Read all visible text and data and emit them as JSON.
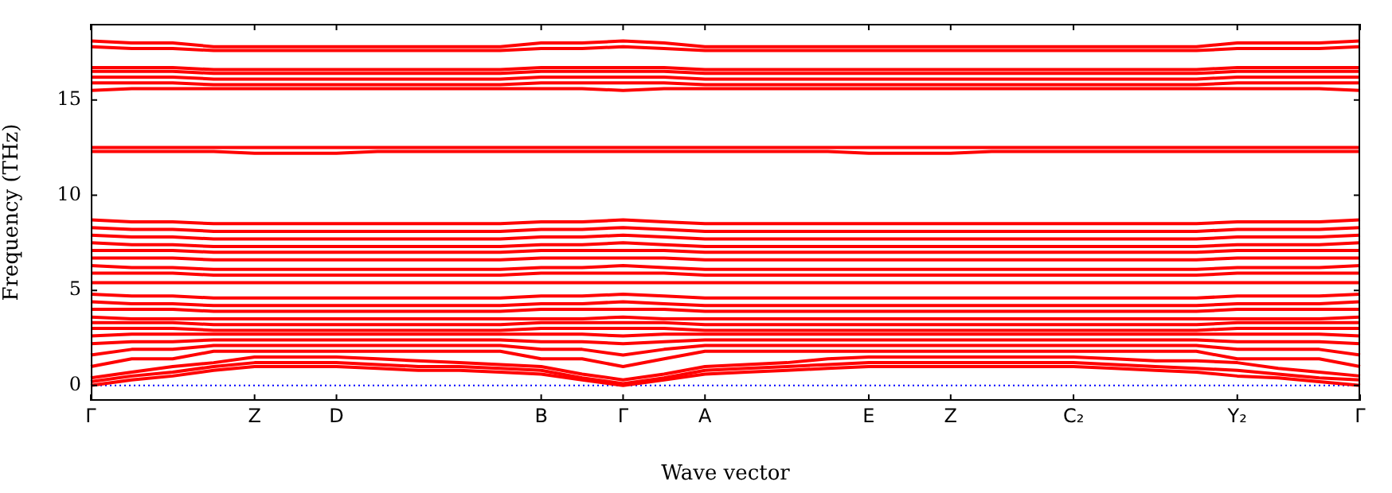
{
  "chart_data": {
    "type": "line",
    "xlabel": "Wave vector",
    "ylabel": "Frequency (THz)",
    "marker": "none",
    "legend": false,
    "grid": false,
    "categories": [
      "Γ",
      null,
      null,
      null,
      "Z",
      null,
      "D",
      null,
      null,
      null,
      null,
      "B",
      null,
      "Γ",
      null,
      "A",
      null,
      null,
      null,
      "E",
      null,
      "Z",
      null,
      null,
      "C₂",
      null,
      null,
      null,
      "Y₂",
      null,
      null,
      "Γ"
    ],
    "ylim": [
      -0.8,
      19
    ],
    "yticks": [
      0,
      5,
      10,
      15
    ],
    "ref_lines": [
      {
        "axis": "y",
        "value": 0,
        "color": "#0000ff",
        "line_style": "dotted"
      }
    ],
    "series": [
      {
        "color": "#ff0000",
        "values": [
          0,
          0.3,
          0.5,
          0.8,
          1.0,
          1.0,
          1.0,
          0.9,
          0.8,
          0.8,
          0.7,
          0.6,
          0.3,
          0,
          0.3,
          0.6,
          0.7,
          0.8,
          0.9,
          1.0,
          1.0,
          1.0,
          1.0,
          1.0,
          1.0,
          0.9,
          0.8,
          0.7,
          0.5,
          0.4,
          0.2,
          0
        ]
      },
      {
        "color": "#ff0000",
        "values": [
          0.2,
          0.5,
          0.7,
          1.0,
          1.2,
          1.2,
          1.2,
          1.1,
          1.0,
          1.0,
          0.9,
          0.8,
          0.4,
          0.1,
          0.4,
          0.8,
          0.9,
          1.0,
          1.1,
          1.2,
          1.2,
          1.2,
          1.2,
          1.2,
          1.2,
          1.1,
          1.0,
          0.9,
          0.8,
          0.6,
          0.4,
          0.3
        ]
      },
      {
        "color": "#ff0000",
        "values": [
          0.4,
          0.7,
          1.0,
          1.2,
          1.5,
          1.5,
          1.5,
          1.4,
          1.3,
          1.2,
          1.1,
          1.0,
          0.6,
          0.3,
          0.6,
          1.0,
          1.1,
          1.2,
          1.4,
          1.5,
          1.5,
          1.5,
          1.5,
          1.5,
          1.5,
          1.4,
          1.3,
          1.3,
          1.2,
          0.9,
          0.7,
          0.5
        ]
      },
      {
        "color": "#ff0000",
        "values": [
          1.0,
          1.4,
          1.4,
          1.8,
          1.8,
          1.8,
          1.8,
          1.8,
          1.8,
          1.8,
          1.8,
          1.4,
          1.4,
          1.0,
          1.4,
          1.8,
          1.8,
          1.8,
          1.8,
          1.8,
          1.8,
          1.8,
          1.8,
          1.8,
          1.8,
          1.8,
          1.8,
          1.8,
          1.4,
          1.4,
          1.4,
          1.0
        ]
      },
      {
        "color": "#ff0000",
        "values": [
          1.6,
          1.9,
          1.9,
          2.1,
          2.1,
          2.1,
          2.1,
          2.1,
          2.1,
          2.1,
          2.1,
          1.9,
          1.9,
          1.6,
          1.9,
          2.1,
          2.1,
          2.1,
          2.1,
          2.1,
          2.1,
          2.1,
          2.1,
          2.1,
          2.1,
          2.1,
          2.1,
          2.1,
          1.9,
          1.9,
          1.9,
          1.6
        ]
      },
      {
        "color": "#ff0000",
        "values": [
          2.2,
          2.3,
          2.3,
          2.4,
          2.4,
          2.4,
          2.4,
          2.4,
          2.4,
          2.4,
          2.4,
          2.3,
          2.3,
          2.2,
          2.3,
          2.4,
          2.4,
          2.4,
          2.4,
          2.4,
          2.4,
          2.4,
          2.4,
          2.4,
          2.4,
          2.4,
          2.4,
          2.4,
          2.3,
          2.3,
          2.3,
          2.2
        ]
      },
      {
        "color": "#ff0000",
        "values": [
          2.6,
          2.7,
          2.7,
          2.7,
          2.7,
          2.7,
          2.7,
          2.7,
          2.7,
          2.7,
          2.7,
          2.7,
          2.7,
          2.6,
          2.7,
          2.7,
          2.7,
          2.7,
          2.7,
          2.7,
          2.7,
          2.7,
          2.7,
          2.7,
          2.7,
          2.7,
          2.7,
          2.7,
          2.7,
          2.7,
          2.7,
          2.6
        ]
      },
      {
        "color": "#ff0000",
        "values": [
          3.0,
          3.0,
          3.0,
          2.9,
          2.9,
          2.9,
          2.9,
          2.9,
          2.9,
          2.9,
          2.9,
          3.0,
          3.0,
          3.0,
          3.0,
          2.9,
          2.9,
          2.9,
          2.9,
          2.9,
          2.9,
          2.9,
          2.9,
          2.9,
          2.9,
          2.9,
          2.9,
          2.9,
          3.0,
          3.0,
          3.0,
          3.0
        ]
      },
      {
        "color": "#ff0000",
        "values": [
          3.3,
          3.3,
          3.3,
          3.2,
          3.2,
          3.2,
          3.2,
          3.2,
          3.2,
          3.2,
          3.2,
          3.3,
          3.3,
          3.3,
          3.3,
          3.2,
          3.2,
          3.2,
          3.2,
          3.2,
          3.2,
          3.2,
          3.2,
          3.2,
          3.2,
          3.2,
          3.2,
          3.2,
          3.3,
          3.3,
          3.3,
          3.3
        ]
      },
      {
        "color": "#ff0000",
        "values": [
          3.6,
          3.5,
          3.5,
          3.5,
          3.5,
          3.5,
          3.5,
          3.5,
          3.5,
          3.5,
          3.5,
          3.5,
          3.5,
          3.6,
          3.5,
          3.5,
          3.5,
          3.5,
          3.5,
          3.5,
          3.5,
          3.5,
          3.5,
          3.5,
          3.5,
          3.5,
          3.5,
          3.5,
          3.5,
          3.5,
          3.5,
          3.6
        ]
      },
      {
        "color": "#ff0000",
        "values": [
          4.0,
          4.0,
          4.0,
          3.9,
          3.9,
          3.9,
          3.9,
          3.9,
          3.9,
          3.9,
          3.9,
          4.0,
          4.0,
          4.0,
          4.0,
          3.9,
          3.9,
          3.9,
          3.9,
          3.9,
          3.9,
          3.9,
          3.9,
          3.9,
          3.9,
          3.9,
          3.9,
          3.9,
          4.0,
          4.0,
          4.0,
          4.0
        ]
      },
      {
        "color": "#ff0000",
        "values": [
          4.4,
          4.3,
          4.3,
          4.2,
          4.2,
          4.2,
          4.2,
          4.2,
          4.2,
          4.2,
          4.2,
          4.3,
          4.3,
          4.4,
          4.3,
          4.2,
          4.2,
          4.2,
          4.2,
          4.2,
          4.2,
          4.2,
          4.2,
          4.2,
          4.2,
          4.2,
          4.2,
          4.2,
          4.3,
          4.3,
          4.3,
          4.4
        ]
      },
      {
        "color": "#ff0000",
        "values": [
          4.8,
          4.7,
          4.7,
          4.6,
          4.6,
          4.6,
          4.6,
          4.6,
          4.6,
          4.6,
          4.6,
          4.7,
          4.7,
          4.8,
          4.7,
          4.6,
          4.6,
          4.6,
          4.6,
          4.6,
          4.6,
          4.6,
          4.6,
          4.6,
          4.6,
          4.6,
          4.6,
          4.6,
          4.7,
          4.7,
          4.7,
          4.8
        ]
      },
      {
        "color": "#ff0000",
        "values": [
          5.4,
          5.4,
          5.4,
          5.4,
          5.4,
          5.4,
          5.4,
          5.4,
          5.4,
          5.4,
          5.4,
          5.4,
          5.4,
          5.4,
          5.4,
          5.4,
          5.4,
          5.4,
          5.4,
          5.4,
          5.4,
          5.4,
          5.4,
          5.4,
          5.4,
          5.4,
          5.4,
          5.4,
          5.4,
          5.4,
          5.4,
          5.4
        ]
      },
      {
        "color": "#ff0000",
        "values": [
          5.9,
          5.9,
          5.9,
          5.8,
          5.8,
          5.8,
          5.8,
          5.8,
          5.8,
          5.8,
          5.8,
          5.9,
          5.9,
          5.9,
          5.9,
          5.8,
          5.8,
          5.8,
          5.8,
          5.8,
          5.8,
          5.8,
          5.8,
          5.8,
          5.8,
          5.8,
          5.8,
          5.8,
          5.9,
          5.9,
          5.9,
          5.9
        ]
      },
      {
        "color": "#ff0000",
        "values": [
          6.3,
          6.2,
          6.2,
          6.1,
          6.1,
          6.1,
          6.1,
          6.1,
          6.1,
          6.1,
          6.1,
          6.2,
          6.2,
          6.3,
          6.2,
          6.1,
          6.1,
          6.1,
          6.1,
          6.1,
          6.1,
          6.1,
          6.1,
          6.1,
          6.1,
          6.1,
          6.1,
          6.1,
          6.2,
          6.2,
          6.2,
          6.3
        ]
      },
      {
        "color": "#ff0000",
        "values": [
          6.7,
          6.7,
          6.7,
          6.6,
          6.6,
          6.6,
          6.6,
          6.6,
          6.6,
          6.6,
          6.6,
          6.7,
          6.7,
          6.7,
          6.7,
          6.6,
          6.6,
          6.6,
          6.6,
          6.6,
          6.6,
          6.6,
          6.6,
          6.6,
          6.6,
          6.6,
          6.6,
          6.6,
          6.7,
          6.7,
          6.7,
          6.7
        ]
      },
      {
        "color": "#ff0000",
        "values": [
          7.1,
          7.1,
          7.1,
          7.0,
          7.0,
          7.0,
          7.0,
          7.0,
          7.0,
          7.0,
          7.0,
          7.1,
          7.1,
          7.1,
          7.1,
          7.0,
          7.0,
          7.0,
          7.0,
          7.0,
          7.0,
          7.0,
          7.0,
          7.0,
          7.0,
          7.0,
          7.0,
          7.0,
          7.1,
          7.1,
          7.1,
          7.1
        ]
      },
      {
        "color": "#ff0000",
        "values": [
          7.5,
          7.4,
          7.4,
          7.3,
          7.3,
          7.3,
          7.3,
          7.3,
          7.3,
          7.3,
          7.3,
          7.4,
          7.4,
          7.5,
          7.4,
          7.3,
          7.3,
          7.3,
          7.3,
          7.3,
          7.3,
          7.3,
          7.3,
          7.3,
          7.3,
          7.3,
          7.3,
          7.3,
          7.4,
          7.4,
          7.4,
          7.5
        ]
      },
      {
        "color": "#ff0000",
        "values": [
          7.9,
          7.8,
          7.8,
          7.7,
          7.7,
          7.7,
          7.7,
          7.7,
          7.7,
          7.7,
          7.7,
          7.8,
          7.8,
          7.9,
          7.8,
          7.7,
          7.7,
          7.7,
          7.7,
          7.7,
          7.7,
          7.7,
          7.7,
          7.7,
          7.7,
          7.7,
          7.7,
          7.7,
          7.8,
          7.8,
          7.8,
          7.9
        ]
      },
      {
        "color": "#ff0000",
        "values": [
          8.3,
          8.2,
          8.2,
          8.1,
          8.1,
          8.1,
          8.1,
          8.1,
          8.1,
          8.1,
          8.1,
          8.2,
          8.2,
          8.3,
          8.2,
          8.1,
          8.1,
          8.1,
          8.1,
          8.1,
          8.1,
          8.1,
          8.1,
          8.1,
          8.1,
          8.1,
          8.1,
          8.1,
          8.2,
          8.2,
          8.2,
          8.3
        ]
      },
      {
        "color": "#ff0000",
        "values": [
          8.7,
          8.6,
          8.6,
          8.5,
          8.5,
          8.5,
          8.5,
          8.5,
          8.5,
          8.5,
          8.5,
          8.6,
          8.6,
          8.7,
          8.6,
          8.5,
          8.5,
          8.5,
          8.5,
          8.5,
          8.5,
          8.5,
          8.5,
          8.5,
          8.5,
          8.5,
          8.5,
          8.5,
          8.6,
          8.6,
          8.6,
          8.7
        ]
      },
      {
        "color": "#ff0000",
        "values": [
          12.5,
          12.5,
          12.5,
          12.5,
          12.5,
          12.5,
          12.5,
          12.5,
          12.5,
          12.5,
          12.5,
          12.5,
          12.5,
          12.5,
          12.5,
          12.5,
          12.5,
          12.5,
          12.5,
          12.5,
          12.5,
          12.5,
          12.5,
          12.5,
          12.5,
          12.5,
          12.5,
          12.5,
          12.5,
          12.5,
          12.5,
          12.5
        ]
      },
      {
        "color": "#ff0000",
        "values": [
          12.3,
          12.3,
          12.3,
          12.3,
          12.2,
          12.2,
          12.2,
          12.3,
          12.3,
          12.3,
          12.3,
          12.3,
          12.3,
          12.3,
          12.3,
          12.3,
          12.3,
          12.3,
          12.3,
          12.2,
          12.2,
          12.2,
          12.3,
          12.3,
          12.3,
          12.3,
          12.3,
          12.3,
          12.3,
          12.3,
          12.3,
          12.3
        ]
      },
      {
        "color": "#ff0000",
        "values": [
          15.5,
          15.6,
          15.6,
          15.6,
          15.6,
          15.6,
          15.6,
          15.6,
          15.6,
          15.6,
          15.6,
          15.6,
          15.6,
          15.5,
          15.6,
          15.6,
          15.6,
          15.6,
          15.6,
          15.6,
          15.6,
          15.6,
          15.6,
          15.6,
          15.6,
          15.6,
          15.6,
          15.6,
          15.6,
          15.6,
          15.6,
          15.5
        ]
      },
      {
        "color": "#ff0000",
        "values": [
          15.9,
          15.9,
          15.9,
          15.8,
          15.8,
          15.8,
          15.8,
          15.8,
          15.8,
          15.8,
          15.8,
          15.9,
          15.9,
          15.9,
          15.9,
          15.8,
          15.8,
          15.8,
          15.8,
          15.8,
          15.8,
          15.8,
          15.8,
          15.8,
          15.8,
          15.8,
          15.8,
          15.8,
          15.9,
          15.9,
          15.9,
          15.9
        ]
      },
      {
        "color": "#ff0000",
        "values": [
          16.2,
          16.2,
          16.2,
          16.1,
          16.1,
          16.1,
          16.1,
          16.1,
          16.1,
          16.1,
          16.1,
          16.2,
          16.2,
          16.2,
          16.2,
          16.1,
          16.1,
          16.1,
          16.1,
          16.1,
          16.1,
          16.1,
          16.1,
          16.1,
          16.1,
          16.1,
          16.1,
          16.1,
          16.2,
          16.2,
          16.2,
          16.2
        ]
      },
      {
        "color": "#ff0000",
        "values": [
          16.5,
          16.5,
          16.5,
          16.4,
          16.4,
          16.4,
          16.4,
          16.4,
          16.4,
          16.4,
          16.4,
          16.5,
          16.5,
          16.5,
          16.5,
          16.4,
          16.4,
          16.4,
          16.4,
          16.4,
          16.4,
          16.4,
          16.4,
          16.4,
          16.4,
          16.4,
          16.4,
          16.4,
          16.5,
          16.5,
          16.5,
          16.5
        ]
      },
      {
        "color": "#ff0000",
        "values": [
          16.7,
          16.7,
          16.7,
          16.6,
          16.6,
          16.6,
          16.6,
          16.6,
          16.6,
          16.6,
          16.6,
          16.7,
          16.7,
          16.7,
          16.7,
          16.6,
          16.6,
          16.6,
          16.6,
          16.6,
          16.6,
          16.6,
          16.6,
          16.6,
          16.6,
          16.6,
          16.6,
          16.6,
          16.7,
          16.7,
          16.7,
          16.7
        ]
      },
      {
        "color": "#ff0000",
        "values": [
          17.8,
          17.7,
          17.7,
          17.6,
          17.6,
          17.6,
          17.6,
          17.6,
          17.6,
          17.6,
          17.6,
          17.7,
          17.7,
          17.8,
          17.7,
          17.6,
          17.6,
          17.6,
          17.6,
          17.6,
          17.6,
          17.6,
          17.6,
          17.6,
          17.6,
          17.6,
          17.6,
          17.6,
          17.7,
          17.7,
          17.7,
          17.8
        ]
      },
      {
        "color": "#ff0000",
        "values": [
          18.1,
          18.0,
          18.0,
          17.8,
          17.8,
          17.8,
          17.8,
          17.8,
          17.8,
          17.8,
          17.8,
          18.0,
          18.0,
          18.1,
          18.0,
          17.8,
          17.8,
          17.8,
          17.8,
          17.8,
          17.8,
          17.8,
          17.8,
          17.8,
          17.8,
          17.8,
          17.8,
          17.8,
          18.0,
          18.0,
          18.0,
          18.1
        ]
      }
    ]
  }
}
